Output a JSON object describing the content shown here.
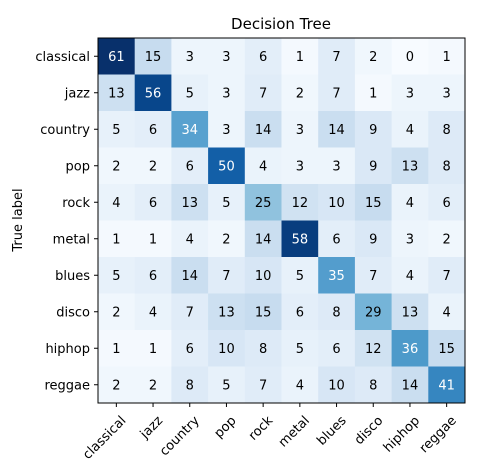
{
  "chart_data": {
    "type": "heatmap",
    "title": "Decision Tree",
    "ylabel": "True label",
    "xlabel": "",
    "row_labels": [
      "classical",
      "jazz",
      "country",
      "pop",
      "rock",
      "metal",
      "blues",
      "disco",
      "hiphop",
      "reggae"
    ],
    "col_labels": [
      "classical",
      "jazz",
      "country",
      "pop",
      "rock",
      "metal",
      "blues",
      "disco",
      "hiphop",
      "reggae"
    ],
    "matrix": [
      [
        61,
        15,
        3,
        3,
        6,
        1,
        7,
        2,
        0,
        1
      ],
      [
        13,
        56,
        5,
        3,
        7,
        2,
        7,
        1,
        3,
        3
      ],
      [
        5,
        6,
        34,
        3,
        14,
        3,
        14,
        9,
        4,
        8
      ],
      [
        2,
        2,
        6,
        50,
        4,
        3,
        3,
        9,
        13,
        8
      ],
      [
        4,
        6,
        13,
        5,
        25,
        12,
        10,
        15,
        4,
        6
      ],
      [
        1,
        1,
        4,
        2,
        14,
        58,
        6,
        9,
        3,
        2
      ],
      [
        5,
        6,
        14,
        7,
        10,
        5,
        35,
        7,
        4,
        7
      ],
      [
        2,
        4,
        7,
        13,
        15,
        6,
        8,
        29,
        13,
        4
      ],
      [
        1,
        1,
        6,
        10,
        8,
        5,
        6,
        12,
        36,
        15
      ],
      [
        2,
        2,
        8,
        5,
        7,
        4,
        10,
        8,
        14,
        41
      ]
    ],
    "colormap": "Blues",
    "value_range": [
      0,
      61
    ],
    "text_color_dark": "#000000",
    "text_color_light": "#ffffff",
    "grid": false
  }
}
